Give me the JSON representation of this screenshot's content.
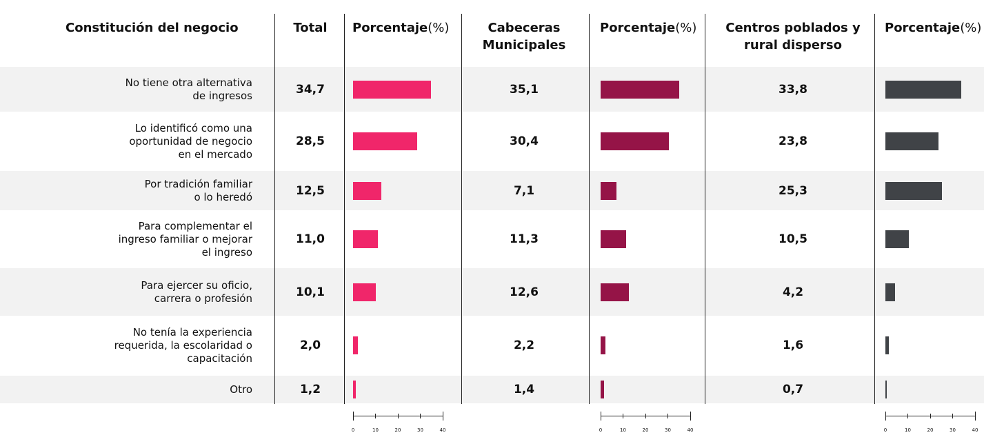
{
  "chart_data": {
    "type": "bar",
    "category_header": "Constitución del negocio",
    "bar_header": "Porcentaje",
    "bar_unit": "(%)",
    "categories": [
      [
        "No tiene otra alternativa",
        "de ingresos"
      ],
      [
        "Lo identificó como una",
        "oportunidad de negocio",
        "en el mercado"
      ],
      [
        "Por tradición familiar",
        "o lo heredó"
      ],
      [
        "Para complementar el",
        "ingreso familiar o mejorar",
        "el ingreso"
      ],
      [
        "Para ejercer su oficio,",
        "carrera o profesión"
      ],
      [
        "No tenía la experiencia",
        "requerida,  la escolaridad o",
        "capacitación"
      ],
      [
        "Otro"
      ]
    ],
    "series": [
      {
        "name": "Total",
        "color": "#f0266a",
        "values": [
          34.7,
          28.5,
          12.5,
          11.0,
          10.1,
          2.0,
          1.2
        ],
        "value_labels": [
          "34,7",
          "28,5",
          "12,5",
          "11,0",
          "10,1",
          "2,0",
          "1,2"
        ]
      },
      {
        "name": "Cabeceras Municipales",
        "color": "#951447",
        "values": [
          35.1,
          30.4,
          7.1,
          11.3,
          12.6,
          2.2,
          1.4
        ],
        "value_labels": [
          "35,1",
          "30,4",
          "7,1",
          "11,3",
          "12,6",
          "2,2",
          "1,4"
        ]
      },
      {
        "name": "Centros poblados y rural disperso",
        "color": "#404347",
        "values": [
          33.8,
          23.8,
          25.3,
          10.5,
          4.2,
          1.6,
          0.7
        ],
        "value_labels": [
          "33,8",
          "23,8",
          "25,3",
          "10,5",
          "4,2",
          "1,6",
          "0,7"
        ]
      }
    ],
    "xlim": [
      0,
      40
    ],
    "xticks": [
      0,
      10,
      20,
      30,
      40
    ]
  }
}
